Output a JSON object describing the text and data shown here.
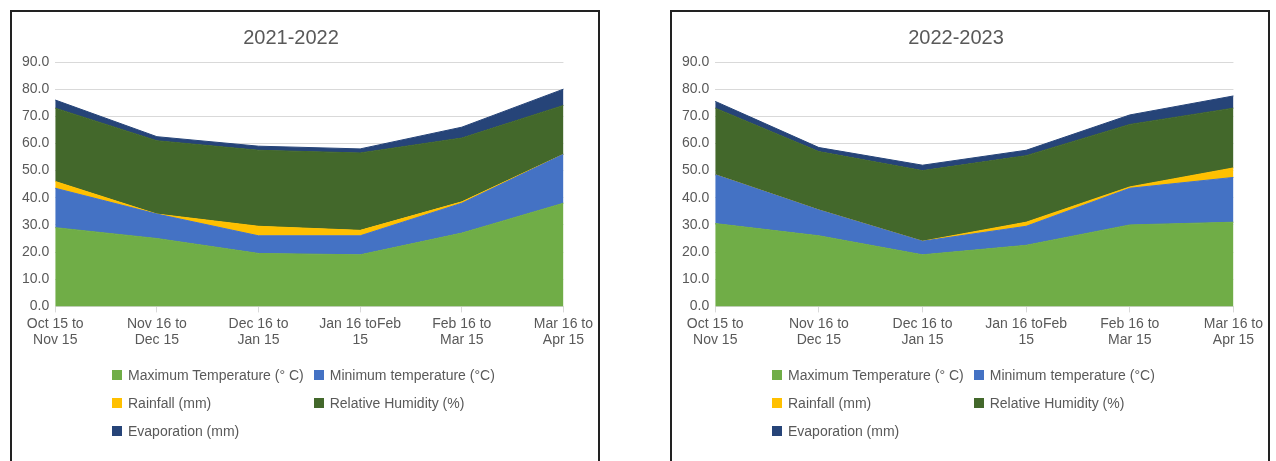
{
  "chart_data": [
    {
      "type": "area",
      "title": "2021-2022",
      "stacked": true,
      "grid": "y",
      "legend": "bottom",
      "categories": [
        "Oct 15 to\nNov 15",
        "Nov 16 to\nDec 15",
        "Dec 16 to\nJan 15",
        "Jan 16 toFeb\n15",
        "Feb 16 to\nMar 15",
        "Mar 16 to\nApr 15"
      ],
      "ylim": [
        0,
        90
      ],
      "yticks": [
        {
          "value": 0,
          "label": "0.0"
        },
        {
          "value": 10,
          "label": "10.0"
        },
        {
          "value": 20,
          "label": "20.0"
        },
        {
          "value": 30,
          "label": "30.0"
        },
        {
          "value": 40,
          "label": "40.0"
        },
        {
          "value": 50,
          "label": "50.0"
        },
        {
          "value": 60,
          "label": "60.0"
        },
        {
          "value": 70,
          "label": "70.0"
        },
        {
          "value": 80,
          "label": "80.0"
        },
        {
          "value": 90,
          "label": "90.0"
        }
      ],
      "series": [
        {
          "name": "Maximum Temperature (° C)",
          "color": "#70ad47",
          "values": [
            29,
            25,
            19.5,
            19,
            27,
            38
          ]
        },
        {
          "name": "Minimum temperature (°C)",
          "color": "#4472c4",
          "values": [
            14.5,
            9,
            6.5,
            7,
            11,
            18
          ]
        },
        {
          "name": "Rainfall (mm)",
          "color": "#ffc000",
          "values": [
            2.5,
            0,
            3.5,
            2,
            0.5,
            0
          ]
        },
        {
          "name": "Relative Humidity (%)",
          "color": "#43682b",
          "values": [
            27,
            27,
            28,
            28.5,
            23.5,
            18
          ]
        },
        {
          "name": "Evaporation (mm)",
          "color": "#264478",
          "values": [
            3,
            1.5,
            1.5,
            1.5,
            4,
            6
          ]
        }
      ]
    },
    {
      "type": "area",
      "title": "2022-2023",
      "stacked": true,
      "grid": "y",
      "legend": "bottom",
      "categories": [
        "Oct 15 to\nNov 15",
        "Nov 16 to\nDec 15",
        "Dec 16 to\nJan 15",
        "Jan 16 toFeb\n15",
        "Feb 16 to\nMar 15",
        "Mar 16 to\nApr 15"
      ],
      "ylim": [
        0,
        90
      ],
      "yticks": [
        {
          "value": 0,
          "label": "0.0"
        },
        {
          "value": 10,
          "label": "10.0"
        },
        {
          "value": 20,
          "label": "20.0"
        },
        {
          "value": 30,
          "label": "30.0"
        },
        {
          "value": 40,
          "label": "40.0"
        },
        {
          "value": 50,
          "label": "50.0"
        },
        {
          "value": 60,
          "label": "60.0"
        },
        {
          "value": 70,
          "label": "70.0"
        },
        {
          "value": 80,
          "label": "80.0"
        },
        {
          "value": 90,
          "label": "90.0"
        }
      ],
      "series": [
        {
          "name": "Maximum Temperature (° C)",
          "color": "#70ad47",
          "values": [
            30.5,
            26,
            19,
            22.5,
            30,
            31
          ]
        },
        {
          "name": "Minimum temperature (°C)",
          "color": "#4472c4",
          "values": [
            18,
            9.5,
            5,
            7,
            13.5,
            16.5
          ]
        },
        {
          "name": "Rainfall (mm)",
          "color": "#ffc000",
          "values": [
            0,
            0,
            0,
            1.5,
            0.5,
            3.5
          ]
        },
        {
          "name": "Relative Humidity (%)",
          "color": "#43682b",
          "values": [
            24.5,
            21.5,
            26,
            24.5,
            23,
            22
          ]
        },
        {
          "name": "Evaporation (mm)",
          "color": "#264478",
          "values": [
            2.5,
            1.5,
            2,
            2,
            3.5,
            4.5
          ]
        }
      ]
    }
  ]
}
